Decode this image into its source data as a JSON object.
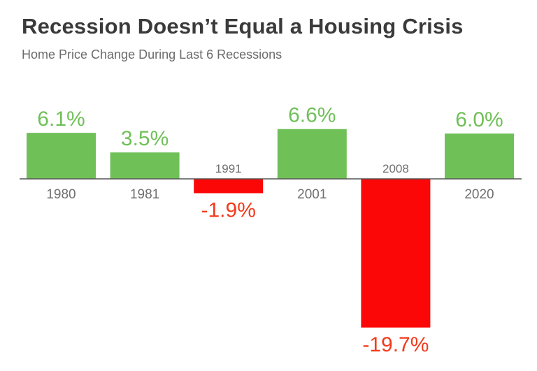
{
  "title": "Recession Doesn’t Equal a Housing Crisis",
  "subtitle": "Home Price Change During Last 6 Recessions",
  "colors": {
    "positive": "#70c058",
    "negative": "#fb0707",
    "positive_label": "#70c058",
    "negative_label": "#f23a1c",
    "category_label": "#6f6f6f",
    "baseline": "#555555"
  },
  "chart_data": {
    "type": "bar",
    "categories": [
      "1980",
      "1981",
      "1991",
      "2001",
      "2008",
      "2020"
    ],
    "values": [
      6.1,
      3.5,
      -1.9,
      6.6,
      -19.7,
      6.0
    ],
    "value_labels": [
      "6.1%",
      "3.5%",
      "-1.9%",
      "6.6%",
      "-19.7%",
      "6.0%"
    ],
    "title": "Recession Doesn’t Equal a Housing Crisis",
    "subtitle": "Home Price Change During Last 6 Recessions",
    "xlabel": "",
    "ylabel": "",
    "grid": false,
    "legend": "none"
  }
}
